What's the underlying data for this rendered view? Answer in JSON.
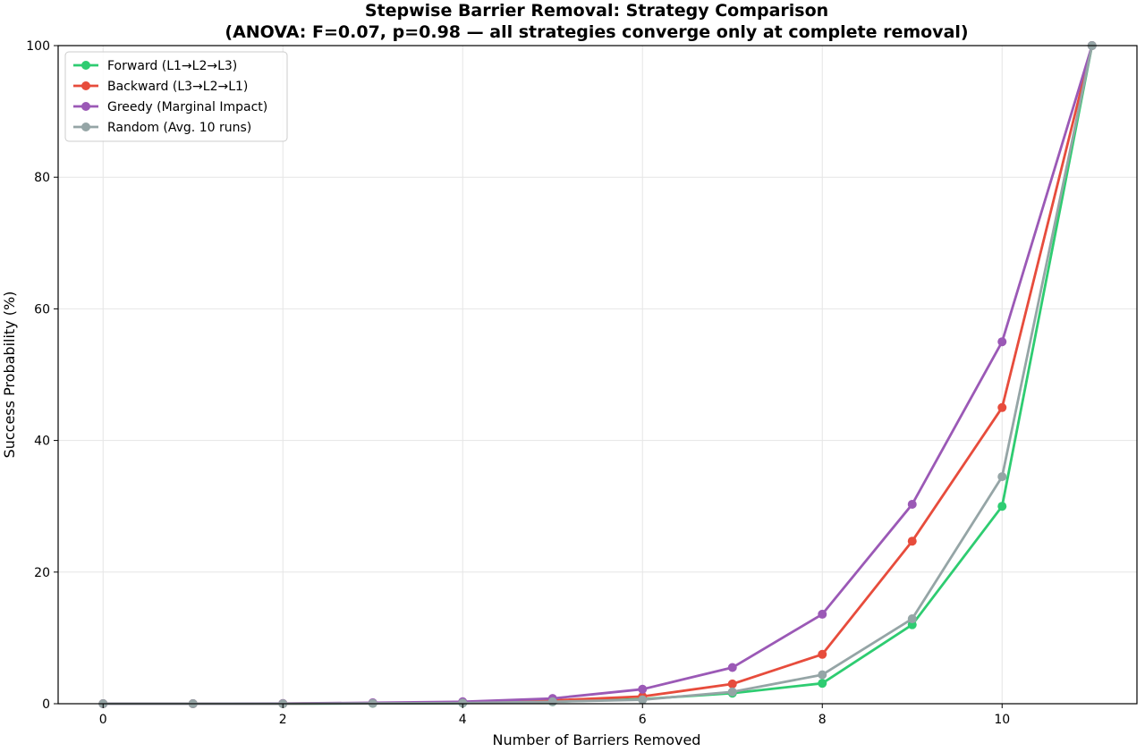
{
  "chart_data": {
    "type": "line",
    "title": "Stepwise Barrier Removal: Strategy Comparison",
    "subtitle": "(ANOVA: F=0.07, p=0.98 — all strategies converge only at complete removal)",
    "xlabel": "Number of Barriers Removed",
    "ylabel": "Success Probability (%)",
    "xlim": [
      -0.5,
      11.5
    ],
    "ylim": [
      0,
      100
    ],
    "xticks": [
      0,
      2,
      4,
      6,
      8,
      10
    ],
    "yticks": [
      0,
      20,
      40,
      60,
      80,
      100
    ],
    "grid": true,
    "legend_position": "top-left",
    "x": [
      0,
      1,
      2,
      3,
      4,
      5,
      6,
      7,
      8,
      9,
      10,
      11
    ],
    "series": [
      {
        "name": "Forward (L1→L2→L3)",
        "color": "#2ecc71",
        "values": [
          0.0,
          0.0,
          0.0,
          0.05,
          0.1,
          0.3,
          0.7,
          1.6,
          3.1,
          12.0,
          30.0,
          100.0
        ]
      },
      {
        "name": "Backward (L3→L2→L1)",
        "color": "#e74c3c",
        "values": [
          0.0,
          0.0,
          0.02,
          0.1,
          0.2,
          0.5,
          1.1,
          3.0,
          7.5,
          24.7,
          45.0,
          100.0
        ]
      },
      {
        "name": "Greedy (Marginal Impact)",
        "color": "#9b59b6",
        "values": [
          0.0,
          0.0,
          0.03,
          0.15,
          0.3,
          0.8,
          2.2,
          5.5,
          13.6,
          30.3,
          55.0,
          100.0
        ]
      },
      {
        "name": "Random (Avg. 10 runs)",
        "color": "#95a5a6",
        "values": [
          0.0,
          0.0,
          0.0,
          0.05,
          0.1,
          0.3,
          0.6,
          1.8,
          4.4,
          12.9,
          34.5,
          100.0
        ]
      }
    ]
  }
}
